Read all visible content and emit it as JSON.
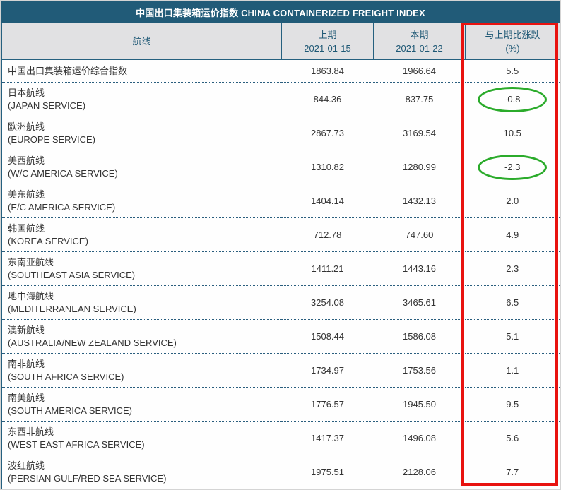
{
  "title": "中国出口集装箱运价指数 CHINA CONTAINERIZED FREIGHT INDEX",
  "columns": {
    "route": "航线",
    "prev_label": "上期",
    "prev_date": "2021-01-15",
    "curr_label": "本期",
    "curr_date": "2021-01-22",
    "change_label": "与上期比涨跌",
    "change_unit": "(%)"
  },
  "rows": [
    {
      "name_cn": "中国出口集装箱运价综合指数",
      "name_en": "",
      "prev": "1863.84",
      "curr": "1966.64",
      "change": "5.5",
      "circled": false
    },
    {
      "name_cn": "日本航线",
      "name_en": "(JAPAN SERVICE)",
      "prev": "844.36",
      "curr": "837.75",
      "change": "-0.8",
      "circled": true
    },
    {
      "name_cn": "欧洲航线",
      "name_en": "(EUROPE SERVICE)",
      "prev": "2867.73",
      "curr": "3169.54",
      "change": "10.5",
      "circled": false
    },
    {
      "name_cn": "美西航线",
      "name_en": "(W/C AMERICA SERVICE)",
      "prev": "1310.82",
      "curr": "1280.99",
      "change": "-2.3",
      "circled": true
    },
    {
      "name_cn": "美东航线",
      "name_en": "(E/C AMERICA SERVICE)",
      "prev": "1404.14",
      "curr": "1432.13",
      "change": "2.0",
      "circled": false
    },
    {
      "name_cn": "韩国航线",
      "name_en": "(KOREA SERVICE)",
      "prev": "712.78",
      "curr": "747.60",
      "change": "4.9",
      "circled": false
    },
    {
      "name_cn": "东南亚航线",
      "name_en": "(SOUTHEAST ASIA SERVICE)",
      "prev": "1411.21",
      "curr": "1443.16",
      "change": "2.3",
      "circled": false
    },
    {
      "name_cn": "地中海航线",
      "name_en": "(MEDITERRANEAN SERVICE)",
      "prev": "3254.08",
      "curr": "3465.61",
      "change": "6.5",
      "circled": false
    },
    {
      "name_cn": "澳新航线",
      "name_en": "(AUSTRALIA/NEW ZEALAND SERVICE)",
      "prev": "1508.44",
      "curr": "1586.08",
      "change": "5.1",
      "circled": false
    },
    {
      "name_cn": "南非航线",
      "name_en": "(SOUTH AFRICA SERVICE)",
      "prev": "1734.97",
      "curr": "1753.56",
      "change": "1.1",
      "circled": false
    },
    {
      "name_cn": "南美航线",
      "name_en": "(SOUTH AMERICA SERVICE)",
      "prev": "1776.57",
      "curr": "1945.50",
      "change": "9.5",
      "circled": false
    },
    {
      "name_cn": "东西非航线",
      "name_en": "(WEST EAST AFRICA SERVICE)",
      "prev": "1417.37",
      "curr": "1496.08",
      "change": "5.6",
      "circled": false
    },
    {
      "name_cn": "波红航线",
      "name_en": "(PERSIAN GULF/RED SEA SERVICE)",
      "prev": "1975.51",
      "curr": "2128.06",
      "change": "7.7",
      "circled": false
    }
  ],
  "annotations": {
    "red_box_target": "与上期比涨跌 (%) column",
    "green_circled_values": [
      "-0.8",
      "-2.3"
    ]
  },
  "colors": {
    "title_bar_bg": "#215b78",
    "header_row_bg": "#e1e1e3",
    "header_text": "#1e5875",
    "body_text": "#333333",
    "table_border": "#25607f",
    "red_annotation": "#e8120f",
    "green_annotation": "#2bab2b",
    "page_bg": "#d4d4d4"
  },
  "chart_data": {
    "type": "table",
    "title": "中国出口集装箱运价指数 CHINA CONTAINERIZED FREIGHT INDEX",
    "columns": [
      "航线",
      "上期 2021-01-15",
      "本期 2021-01-22",
      "与上期比涨跌 (%)"
    ],
    "rows": [
      [
        "中国出口集装箱运价综合指数",
        1863.84,
        1966.64,
        5.5
      ],
      [
        "日本航线 (JAPAN SERVICE)",
        844.36,
        837.75,
        -0.8
      ],
      [
        "欧洲航线 (EUROPE SERVICE)",
        2867.73,
        3169.54,
        10.5
      ],
      [
        "美西航线 (W/C AMERICA SERVICE)",
        1310.82,
        1280.99,
        -2.3
      ],
      [
        "美东航线 (E/C AMERICA SERVICE)",
        1404.14,
        1432.13,
        2.0
      ],
      [
        "韩国航线 (KOREA SERVICE)",
        712.78,
        747.6,
        4.9
      ],
      [
        "东南亚航线 (SOUTHEAST ASIA SERVICE)",
        1411.21,
        1443.16,
        2.3
      ],
      [
        "地中海航线 (MEDITERRANEAN SERVICE)",
        3254.08,
        3465.61,
        6.5
      ],
      [
        "澳新航线 (AUSTRALIA/NEW ZEALAND SERVICE)",
        1508.44,
        1586.08,
        5.1
      ],
      [
        "南非航线 (SOUTH AFRICA SERVICE)",
        1734.97,
        1753.56,
        1.1
      ],
      [
        "南美航线 (SOUTH AMERICA SERVICE)",
        1776.57,
        1945.5,
        9.5
      ],
      [
        "东西非航线 (WEST EAST AFRICA SERVICE)",
        1417.37,
        1496.08,
        5.6
      ],
      [
        "波红航线 (PERSIAN GULF/RED SEA SERVICE)",
        1975.51,
        2128.06,
        7.7
      ]
    ]
  }
}
